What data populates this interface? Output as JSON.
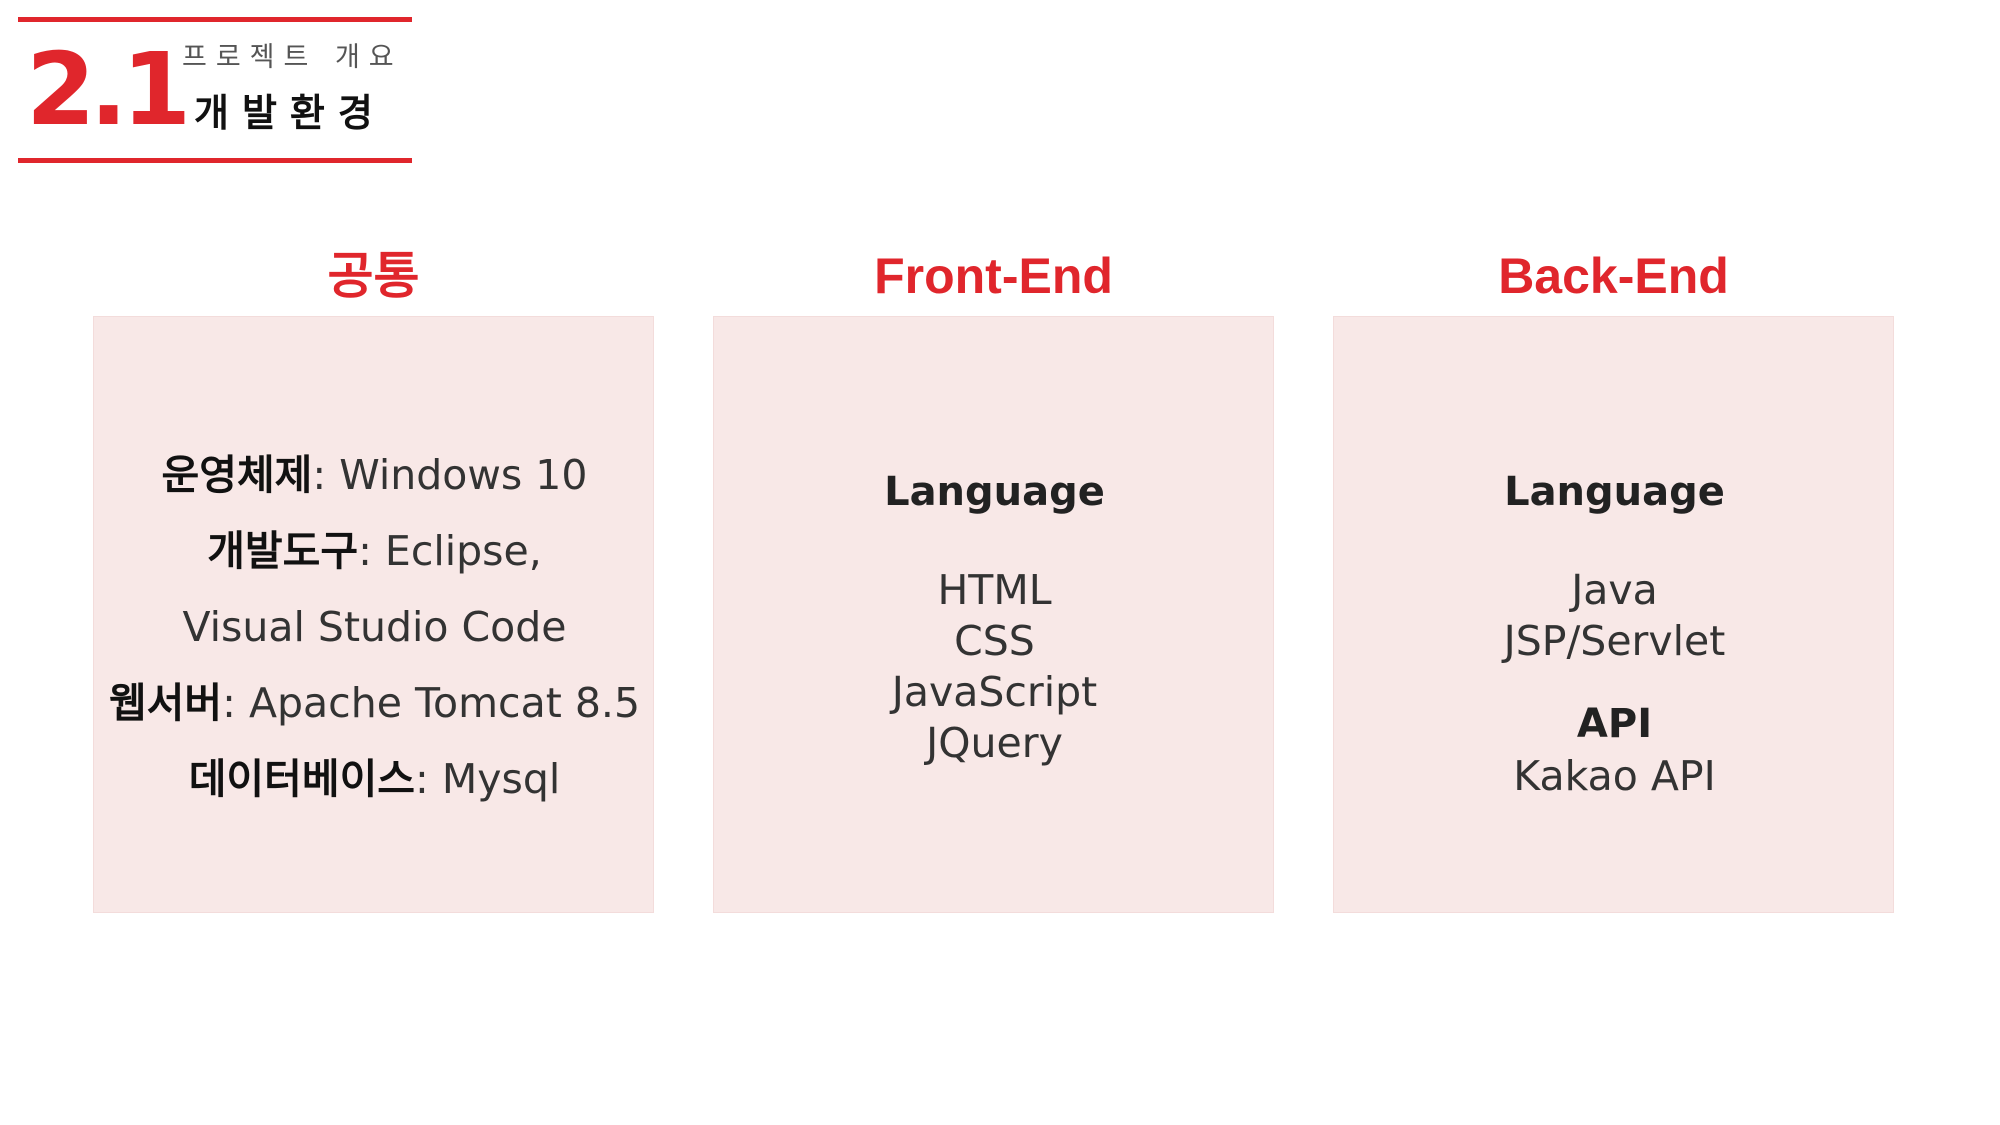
{
  "header": {
    "section_number": "2.1",
    "section_subtitle": "프로젝트 개요",
    "section_title": "개발환경"
  },
  "columns": {
    "common": {
      "heading": "공통",
      "rows": [
        {
          "label": "운영체제",
          "value": ": Windows 10"
        },
        {
          "label": "개발도구",
          "value": ": Eclipse,"
        },
        {
          "label": "",
          "value": "Visual Studio Code"
        },
        {
          "label": "웹서버",
          "value": ": Apache Tomcat 8.5"
        },
        {
          "label": "데이터베이스",
          "value": ": Mysql"
        }
      ]
    },
    "frontend": {
      "heading": "Front-End",
      "language_label": "Language",
      "languages": [
        "HTML",
        "CSS",
        "JavaScript",
        "JQuery"
      ]
    },
    "backend": {
      "heading": "Back-End",
      "language_label": "Language",
      "languages": [
        "Java",
        "JSP/Servlet"
      ],
      "api_label": "API",
      "apis": [
        "Kakao API"
      ]
    }
  },
  "colors": {
    "accent": "#e0262c",
    "panel_bg": "#f8e8e7",
    "text": "#333333"
  }
}
